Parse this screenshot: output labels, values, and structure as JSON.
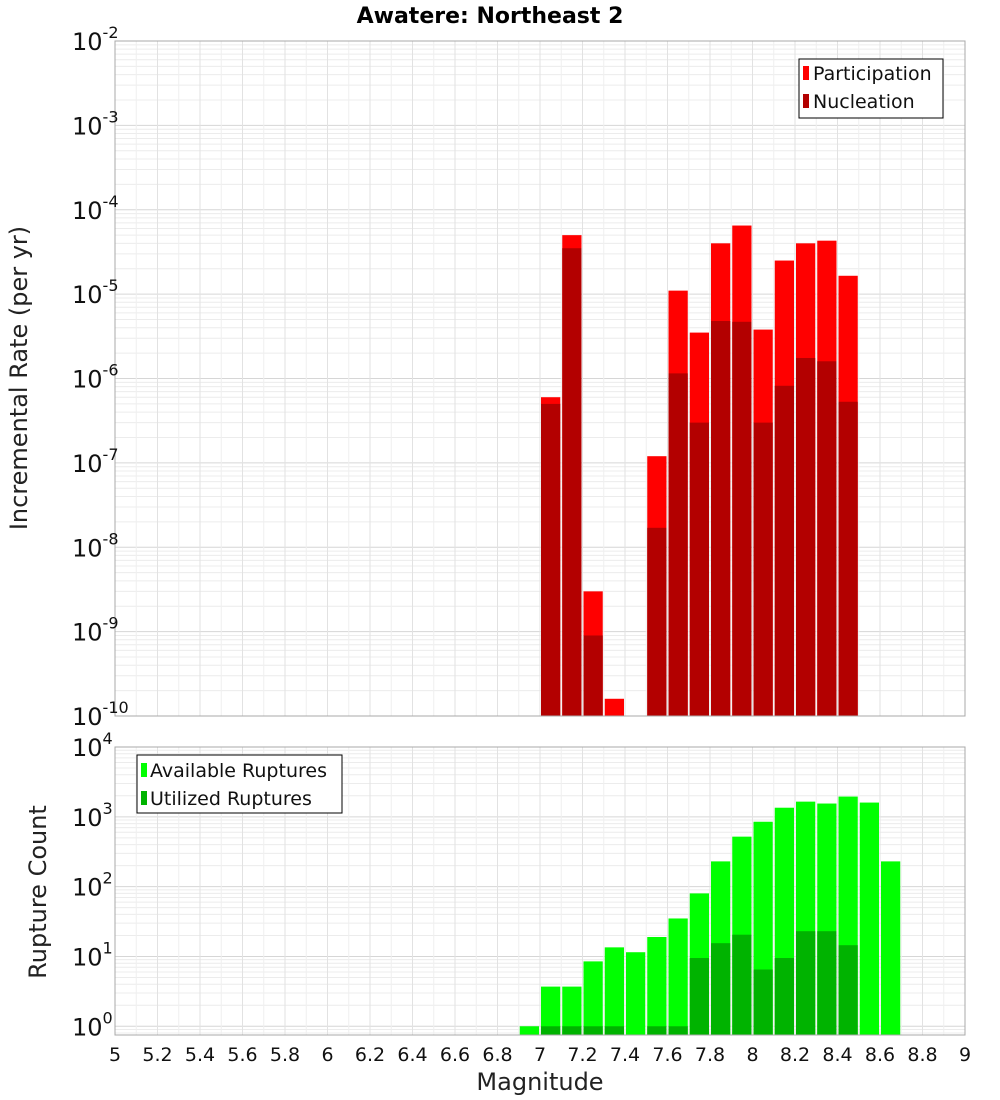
{
  "chart_data": [
    {
      "type": "bar",
      "title": "Awatere: Northeast 2",
      "xlabel": "",
      "ylabel": "Incremental Rate (per yr)",
      "yscale": "log",
      "ylim": [
        1e-10,
        0.01
      ],
      "xlim": [
        5,
        9
      ],
      "bar_width": 0.1,
      "yticks": [
        {
          "base": "10",
          "exp": "-10"
        },
        {
          "base": "10",
          "exp": "-9"
        },
        {
          "base": "10",
          "exp": "-8"
        },
        {
          "base": "10",
          "exp": "-7"
        },
        {
          "base": "10",
          "exp": "-6"
        },
        {
          "base": "10",
          "exp": "-5"
        },
        {
          "base": "10",
          "exp": "-4"
        },
        {
          "base": "10",
          "exp": "-3"
        },
        {
          "base": "10",
          "exp": "-2"
        }
      ],
      "grid": true,
      "legend_position": "top-right",
      "x": [
        7.0,
        7.1,
        7.2,
        7.3,
        7.5,
        7.6,
        7.7,
        7.8,
        7.9,
        8.0,
        8.1,
        8.2,
        8.3,
        8.4
      ],
      "series": [
        {
          "name": "Participation",
          "color": "#ff0000",
          "values": [
            6e-07,
            5e-05,
            3e-09,
            1.6e-10,
            1.2e-07,
            1.1e-05,
            3.5e-06,
            4e-05,
            6.5e-05,
            3.8e-06,
            2.5e-05,
            4e-05,
            4.3e-05,
            1.65e-05
          ]
        },
        {
          "name": "Nucleation",
          "color": "#b30000",
          "values": [
            5e-07,
            3.5e-05,
            9e-10,
            1e-10,
            1.7e-08,
            1.15e-06,
            3e-07,
            4.8e-06,
            4.7e-06,
            3e-07,
            8.2e-07,
            1.75e-06,
            1.6e-06,
            5.3e-07
          ]
        }
      ]
    },
    {
      "type": "bar",
      "title": "",
      "xlabel": "Magnitude",
      "ylabel": "Rupture Count",
      "yscale": "log",
      "ylim": [
        0.75,
        10000.0
      ],
      "xlim": [
        5,
        9
      ],
      "bar_width": 0.1,
      "yticks": [
        {
          "base": "10",
          "exp": "0"
        },
        {
          "base": "10",
          "exp": "1"
        },
        {
          "base": "10",
          "exp": "2"
        },
        {
          "base": "10",
          "exp": "3"
        },
        {
          "base": "10",
          "exp": "4"
        }
      ],
      "xticks": [
        "5",
        "5.2",
        "5.4",
        "5.6",
        "5.8",
        "6",
        "6.2",
        "6.4",
        "6.6",
        "6.8",
        "7",
        "7.2",
        "7.4",
        "7.6",
        "7.8",
        "8",
        "8.2",
        "8.4",
        "8.6",
        "8.8",
        "9"
      ],
      "grid": true,
      "legend_position": "top-left",
      "x": [
        6.9,
        7.0,
        7.1,
        7.2,
        7.3,
        7.4,
        7.5,
        7.6,
        7.7,
        7.8,
        7.9,
        8.0,
        8.1,
        8.2,
        8.3,
        8.4,
        8.5,
        8.6
      ],
      "series": [
        {
          "name": "Available Ruptures",
          "color": "#00ff00",
          "values": [
            1,
            3.7,
            3.7,
            8.5,
            13.5,
            11.5,
            19,
            35,
            80,
            230,
            520,
            850,
            1350,
            1650,
            1550,
            1950,
            1600,
            230
          ]
        },
        {
          "name": "Utilized Ruptures",
          "color": "#00b300",
          "values": [
            0,
            1,
            1,
            1,
            1,
            0,
            1,
            1,
            9.5,
            15.5,
            20.5,
            6.5,
            9.5,
            23,
            23,
            14.5,
            0,
            0
          ]
        }
      ]
    }
  ]
}
